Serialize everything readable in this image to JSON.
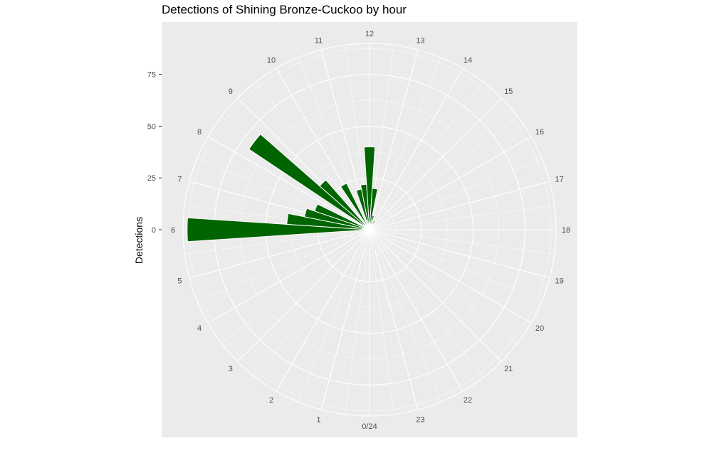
{
  "chart_data": {
    "type": "bar",
    "coord": "polar",
    "title": "Detections of Shining Bronze-Cuckoo by hour",
    "xlabel": "",
    "ylabel": "Detections",
    "ylim": [
      0,
      90
    ],
    "y_ticks": [
      0,
      25,
      50,
      75
    ],
    "angle_tick_labels": [
      "0/24",
      "1",
      "2",
      "3",
      "4",
      "5",
      "6",
      "7",
      "8",
      "9",
      "10",
      "11",
      "12",
      "13",
      "14",
      "15",
      "16",
      "17",
      "18",
      "19",
      "20",
      "21",
      "22",
      "23"
    ],
    "bin_width_hours": 0.5,
    "bar_color": "#006400",
    "panel_color": "#EBEBEB",
    "grid": true,
    "bars": [
      {
        "x": 6.0,
        "value": 88
      },
      {
        "x": 6.5,
        "value": 40
      },
      {
        "x": 7.0,
        "value": 32
      },
      {
        "x": 7.5,
        "value": 28
      },
      {
        "x": 8.5,
        "value": 70
      },
      {
        "x": 9.0,
        "value": 32
      },
      {
        "x": 10.0,
        "value": 25
      },
      {
        "x": 11.0,
        "value": 20
      },
      {
        "x": 11.5,
        "value": 22
      },
      {
        "x": 12.0,
        "value": 40
      },
      {
        "x": 12.5,
        "value": 20
      },
      {
        "x": 13.0,
        "value": 7
      },
      {
        "x": 14.0,
        "value": 5
      },
      {
        "x": 15.0,
        "value": 3
      },
      {
        "x": 16.0,
        "value": 2
      }
    ]
  }
}
